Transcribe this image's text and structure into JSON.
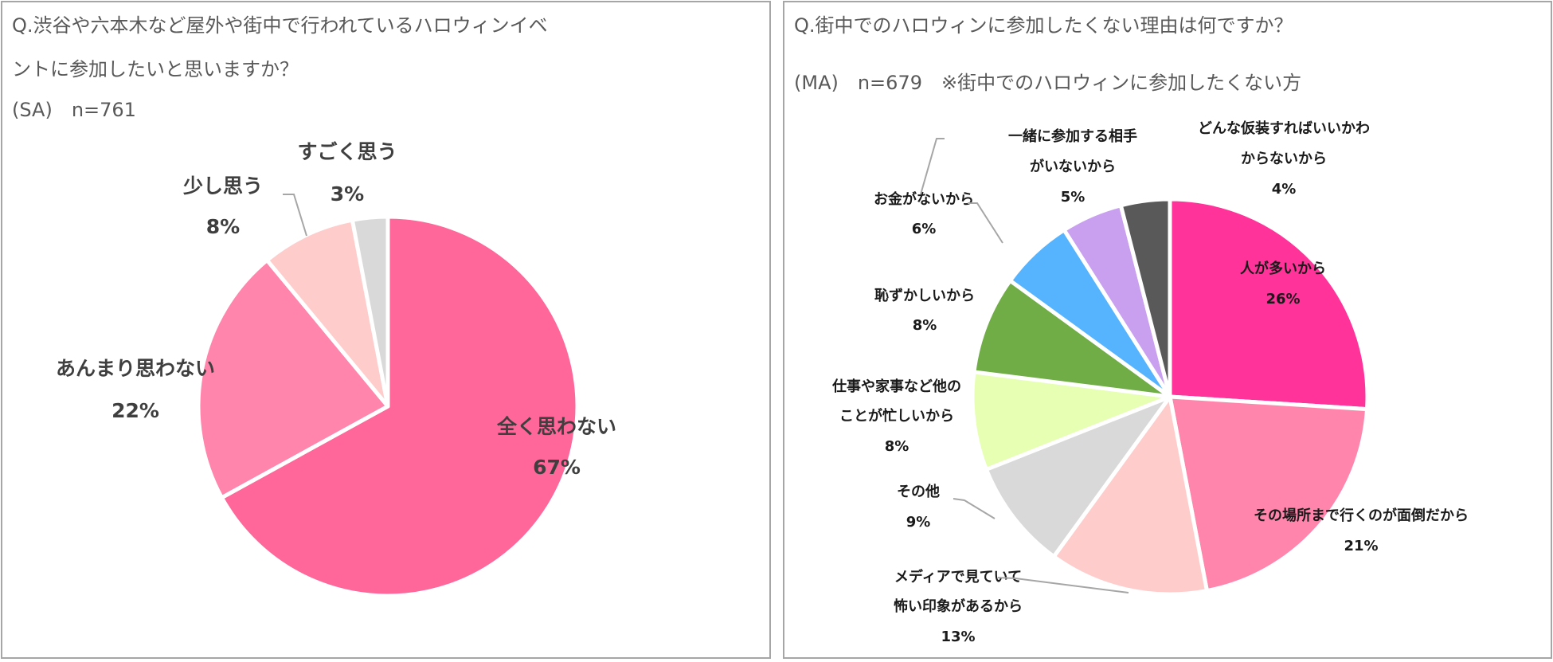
{
  "chart_data": [
    {
      "type": "pie",
      "title_line1": "Q.渋谷や六本木など屋外や街中で行われているハロウィンイベ",
      "title_line2": "ントに参加したいと思いますか？",
      "subtitle": "(SA)　n=761",
      "slices": [
        {
          "label": "全く思わない",
          "value": 67,
          "pct": "67%",
          "color": "#ff6699"
        },
        {
          "label": "あんまり思わない",
          "value": 22,
          "pct": "22%",
          "color": "#ff85ac"
        },
        {
          "label": "少し思う",
          "value": 8,
          "pct": "8%",
          "color": "#ffcccc"
        },
        {
          "label": "すごく思う",
          "value": 3,
          "pct": "3%",
          "color": "#d9d9d9"
        }
      ]
    },
    {
      "type": "pie",
      "title_line1": "Q.街中でのハロウィンに参加したくない理由は何ですか？",
      "title_line2": "(MA)　n=679　※街中でのハロウィンに参加したくない方",
      "slices": [
        {
          "label_lines": [
            "人が多いから"
          ],
          "value": 26,
          "pct": "26%",
          "color": "#ff3399"
        },
        {
          "label_lines": [
            "その場所まで行くのが面倒だから"
          ],
          "value": 21,
          "pct": "21%",
          "color": "#ff85ac"
        },
        {
          "label_lines": [
            "メディアで見ていて",
            "怖い印象があるから"
          ],
          "value": 13,
          "pct": "13%",
          "color": "#ffcccc"
        },
        {
          "label_lines": [
            "その他"
          ],
          "value": 9,
          "pct": "9%",
          "color": "#d9d9d9"
        },
        {
          "label_lines": [
            "仕事や家事など他の",
            "ことが忙しいから"
          ],
          "value": 8,
          "pct": "8%",
          "color": "#e6ffb3"
        },
        {
          "label_lines": [
            "恥ずかしいから"
          ],
          "value": 8,
          "pct": "8%",
          "color": "#70ad47"
        },
        {
          "label_lines": [
            "お金がないから"
          ],
          "value": 6,
          "pct": "6%",
          "color": "#56b4ff"
        },
        {
          "label_lines": [
            "一緒に参加する相手",
            "がいないから"
          ],
          "value": 5,
          "pct": "5%",
          "color": "#c9a0f0"
        },
        {
          "label_lines": [
            "どんな仮装すればいいかわ",
            "からないから"
          ],
          "value": 4,
          "pct": "4%",
          "color": "#595959"
        }
      ]
    }
  ]
}
